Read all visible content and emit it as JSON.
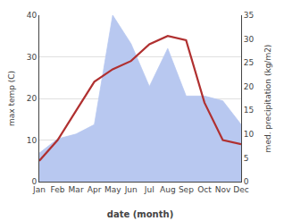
{
  "chart_data": {
    "type": "line",
    "categories": [
      "Jan",
      "Feb",
      "Mar",
      "Apr",
      "May",
      "Jun",
      "Jul",
      "Aug",
      "Sep",
      "Oct",
      "Nov",
      "Dec"
    ],
    "series": [
      {
        "type": "area",
        "axis": "y2",
        "color": "#b8c8f0",
        "values": [
          6,
          9,
          10,
          12,
          35,
          29,
          20,
          28,
          18,
          18,
          17,
          12
        ]
      },
      {
        "type": "line",
        "color": "#b03030",
        "values": [
          5,
          10,
          17,
          24,
          27,
          29,
          33,
          35,
          34,
          19,
          10,
          9
        ]
      }
    ],
    "xlabel": "date (month)",
    "ylabel": "max temp (C)",
    "y2label": "med. precipitation (kg/m2)",
    "ylim": [
      0,
      40
    ],
    "yticks": [
      0,
      10,
      20,
      30,
      40
    ],
    "y2lim": [
      0,
      35
    ],
    "y2ticks": [
      0,
      5,
      10,
      15,
      20,
      25,
      30,
      35
    ],
    "grid": true
  }
}
